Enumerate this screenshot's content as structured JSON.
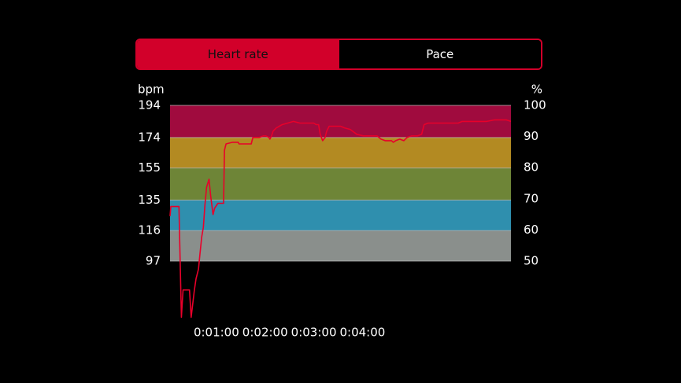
{
  "toggle": {
    "options": [
      {
        "label": "Heart rate",
        "active": true
      },
      {
        "label": "Pace",
        "active": false
      }
    ],
    "active_color": "#d2002a"
  },
  "chart_data": {
    "type": "line",
    "left_axis": {
      "unit_label": "bpm",
      "ticks": [
        194,
        174,
        155,
        135,
        116,
        97
      ],
      "range": [
        97,
        194
      ]
    },
    "right_axis": {
      "unit_label": "%",
      "ticks": [
        100,
        90,
        80,
        70,
        60,
        50
      ],
      "range": [
        50,
        100
      ]
    },
    "x_axis": {
      "tick_labels": [
        "0:01:00",
        "0:02:00",
        "0:03:00",
        "0:04:00"
      ],
      "tick_seconds": [
        60,
        120,
        180,
        240
      ],
      "range_seconds": [
        0,
        420
      ]
    },
    "zones": [
      {
        "from": 174,
        "to": 194,
        "color": "#a00b3e"
      },
      {
        "from": 155,
        "to": 174,
        "color": "#b38a22"
      },
      {
        "from": 135,
        "to": 155,
        "color": "#6e8537"
      },
      {
        "from": 116,
        "to": 135,
        "color": "#2f8fae"
      },
      {
        "from": 97,
        "to": 116,
        "color": "#8a8f8c"
      }
    ],
    "series": [
      {
        "color": "#e8002a",
        "points": [
          [
            0,
            125
          ],
          [
            1,
            131
          ],
          [
            7,
            131
          ],
          [
            11,
            131
          ],
          [
            14,
            62
          ],
          [
            16,
            79
          ],
          [
            22,
            79
          ],
          [
            24,
            79
          ],
          [
            26,
            62
          ],
          [
            30,
            79
          ],
          [
            32,
            86
          ],
          [
            35,
            92
          ],
          [
            37,
            102
          ],
          [
            39,
            112
          ],
          [
            41,
            118
          ],
          [
            43,
            132
          ],
          [
            45,
            143
          ],
          [
            48,
            148
          ],
          [
            50,
            138
          ],
          [
            53,
            126
          ],
          [
            55,
            130
          ],
          [
            59,
            133
          ],
          [
            64,
            133
          ],
          [
            66,
            133
          ],
          [
            67,
            166
          ],
          [
            69,
            170
          ],
          [
            77,
            171
          ],
          [
            84,
            171
          ],
          [
            85,
            170
          ],
          [
            95,
            170
          ],
          [
            100,
            170
          ],
          [
            102,
            174
          ],
          [
            110,
            174
          ],
          [
            115,
            175
          ],
          [
            118,
            175
          ],
          [
            122,
            174
          ],
          [
            123,
            173
          ],
          [
            125,
            175
          ],
          [
            127,
            178
          ],
          [
            131,
            180
          ],
          [
            138,
            182
          ],
          [
            145,
            183
          ],
          [
            152,
            184
          ],
          [
            160,
            183
          ],
          [
            166,
            183
          ],
          [
            172,
            183
          ],
          [
            177,
            183
          ],
          [
            180,
            182
          ],
          [
            183,
            182
          ],
          [
            185,
            176
          ],
          [
            188,
            172
          ],
          [
            191,
            174
          ],
          [
            193,
            178
          ],
          [
            196,
            181
          ],
          [
            200,
            181
          ],
          [
            210,
            181
          ],
          [
            215,
            180
          ],
          [
            222,
            179
          ],
          [
            230,
            176
          ],
          [
            238,
            175
          ],
          [
            247,
            175
          ],
          [
            255,
            175
          ],
          [
            260,
            173
          ],
          [
            265,
            172
          ],
          [
            270,
            172
          ],
          [
            273,
            172
          ],
          [
            275,
            171
          ],
          [
            278,
            172
          ],
          [
            283,
            173
          ],
          [
            288,
            172
          ],
          [
            292,
            174
          ],
          [
            298,
            175
          ],
          [
            305,
            175
          ],
          [
            310,
            176
          ],
          [
            313,
            182
          ],
          [
            318,
            183
          ],
          [
            325,
            183
          ],
          [
            335,
            183
          ],
          [
            345,
            183
          ],
          [
            355,
            183
          ],
          [
            360,
            184
          ],
          [
            370,
            184
          ],
          [
            380,
            184
          ],
          [
            390,
            184
          ],
          [
            400,
            185
          ],
          [
            408,
            185
          ],
          [
            414,
            185
          ],
          [
            420,
            184
          ]
        ]
      }
    ]
  }
}
